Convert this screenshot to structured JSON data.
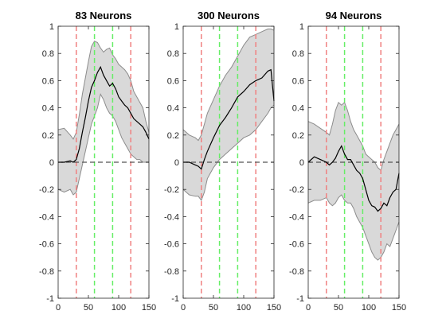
{
  "colors": {
    "background": "#ffffff",
    "band_fill": "#d9d9d9",
    "band_edge": "#8c8c8c",
    "mean_line": "#000000",
    "zero_line": "#555555",
    "red_line": "#f08080",
    "green_line": "#66ee66",
    "axis": "#262626"
  },
  "chart_data": [
    {
      "type": "line",
      "title": "83 Neurons",
      "xlim": [
        0,
        150
      ],
      "ylim": [
        -1,
        1
      ],
      "xticks": [
        0,
        50,
        100,
        150
      ],
      "yticks": [
        -1,
        -0.8,
        -0.6,
        -0.4,
        -0.2,
        0,
        0.2,
        0.4,
        0.6,
        0.8,
        1
      ],
      "zero_line": 0,
      "red_vlines": [
        30,
        120
      ],
      "green_vlines": [
        60,
        90
      ],
      "x": [
        0,
        10,
        20,
        25,
        30,
        35,
        40,
        45,
        50,
        55,
        60,
        65,
        70,
        75,
        80,
        85,
        90,
        95,
        100,
        105,
        110,
        115,
        120,
        125,
        130,
        135,
        140,
        145,
        150
      ],
      "mean": [
        0.0,
        0.0,
        0.01,
        0.0,
        0.02,
        0.1,
        0.22,
        0.33,
        0.45,
        0.55,
        0.6,
        0.66,
        0.7,
        0.64,
        0.6,
        0.56,
        0.58,
        0.54,
        0.48,
        0.45,
        0.42,
        0.4,
        0.36,
        0.32,
        0.3,
        0.28,
        0.26,
        0.22,
        0.17
      ],
      "upper": [
        0.24,
        0.25,
        0.2,
        0.17,
        0.22,
        0.35,
        0.5,
        0.62,
        0.74,
        0.85,
        0.89,
        0.88,
        0.84,
        0.81,
        0.83,
        0.84,
        0.79,
        0.76,
        0.72,
        0.7,
        0.68,
        0.65,
        0.6,
        0.52,
        0.48,
        0.44,
        0.4,
        0.3,
        0.22
      ],
      "lower": [
        -0.2,
        -0.22,
        -0.2,
        -0.24,
        -0.22,
        -0.12,
        -0.02,
        0.08,
        0.18,
        0.28,
        0.34,
        0.4,
        0.5,
        0.46,
        0.4,
        0.36,
        0.34,
        0.3,
        0.24,
        0.18,
        0.14,
        0.1,
        0.06,
        0.04,
        0.02,
        0.02,
        0.0,
        0.0,
        0.0
      ]
    },
    {
      "type": "line",
      "title": "300 Neurons",
      "xlim": [
        0,
        150
      ],
      "ylim": [
        -1,
        1
      ],
      "xticks": [
        0,
        50,
        100,
        150
      ],
      "yticks": [
        -1,
        -0.8,
        -0.6,
        -0.4,
        -0.2,
        0,
        0.2,
        0.4,
        0.6,
        0.8,
        1
      ],
      "zero_line": 0,
      "red_vlines": [
        30,
        120
      ],
      "green_vlines": [
        60,
        90
      ],
      "x": [
        0,
        10,
        20,
        25,
        30,
        35,
        40,
        50,
        60,
        70,
        80,
        90,
        100,
        110,
        120,
        130,
        140,
        145,
        150
      ],
      "mean": [
        0.0,
        0.0,
        -0.02,
        -0.03,
        -0.05,
        0.02,
        0.08,
        0.18,
        0.27,
        0.33,
        0.4,
        0.48,
        0.52,
        0.57,
        0.6,
        0.62,
        0.67,
        0.68,
        0.45
      ],
      "upper": [
        0.24,
        0.2,
        0.18,
        0.16,
        0.2,
        0.28,
        0.36,
        0.46,
        0.56,
        0.64,
        0.7,
        0.78,
        0.86,
        0.92,
        0.94,
        0.96,
        0.98,
        0.98,
        0.97
      ],
      "lower": [
        -0.2,
        -0.24,
        -0.25,
        -0.25,
        -0.28,
        -0.22,
        -0.12,
        -0.04,
        0.02,
        0.06,
        0.1,
        0.14,
        0.18,
        0.2,
        0.24,
        0.3,
        0.36,
        0.4,
        0.42
      ]
    },
    {
      "type": "line",
      "title": "94 Neurons",
      "xlim": [
        0,
        150
      ],
      "ylim": [
        -1,
        1
      ],
      "xticks": [
        0,
        50,
        100,
        150
      ],
      "yticks": [
        -1,
        -0.8,
        -0.6,
        -0.4,
        -0.2,
        0,
        0.2,
        0.4,
        0.6,
        0.8,
        1
      ],
      "zero_line": 0,
      "red_vlines": [
        30,
        120
      ],
      "green_vlines": [
        60,
        90
      ],
      "x": [
        0,
        10,
        20,
        30,
        35,
        40,
        45,
        50,
        55,
        60,
        65,
        70,
        75,
        80,
        85,
        90,
        95,
        100,
        105,
        110,
        115,
        120,
        125,
        130,
        135,
        140,
        145,
        150
      ],
      "mean": [
        0.0,
        0.04,
        0.02,
        0.0,
        -0.02,
        0.0,
        0.03,
        0.08,
        0.12,
        0.06,
        0.02,
        0.02,
        -0.02,
        -0.06,
        -0.08,
        -0.12,
        -0.2,
        -0.28,
        -0.32,
        -0.33,
        -0.36,
        -0.34,
        -0.3,
        -0.32,
        -0.26,
        -0.22,
        -0.2,
        -0.08
      ],
      "upper": [
        0.3,
        0.28,
        0.25,
        0.22,
        0.2,
        0.28,
        0.38,
        0.44,
        0.42,
        0.44,
        0.38,
        0.3,
        0.24,
        0.2,
        0.16,
        0.12,
        0.06,
        0.04,
        0.02,
        0.0,
        -0.04,
        -0.06,
        0.02,
        0.08,
        0.14,
        0.2,
        0.24,
        0.28
      ],
      "lower": [
        -0.3,
        -0.28,
        -0.28,
        -0.26,
        -0.3,
        -0.32,
        -0.3,
        -0.26,
        -0.24,
        -0.28,
        -0.3,
        -0.3,
        -0.34,
        -0.4,
        -0.44,
        -0.48,
        -0.54,
        -0.6,
        -0.66,
        -0.7,
        -0.72,
        -0.7,
        -0.66,
        -0.6,
        -0.62,
        -0.56,
        -0.5,
        -0.44
      ]
    }
  ]
}
